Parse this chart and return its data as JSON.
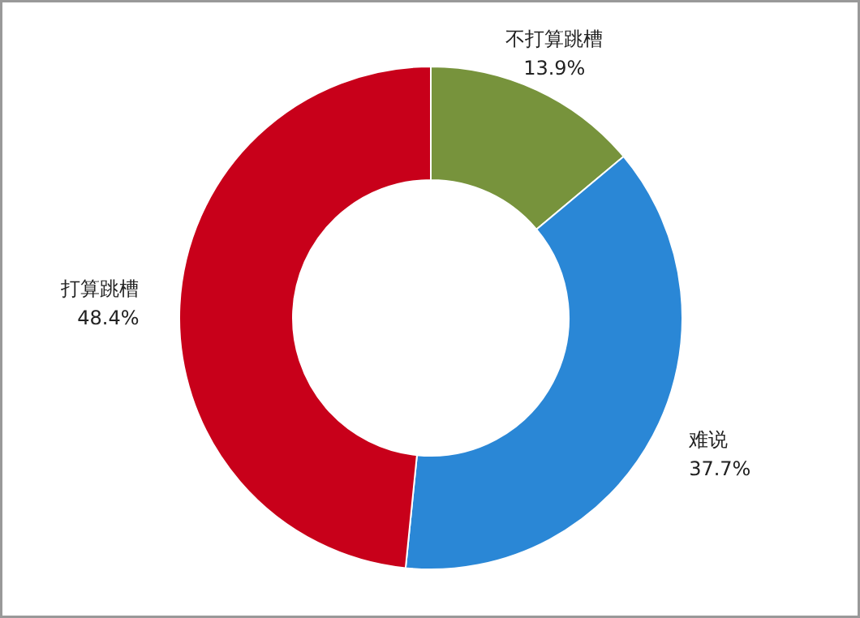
{
  "chart_data": {
    "type": "donut",
    "categories": [
      "不打算跳槽",
      "难说",
      "打算跳槽"
    ],
    "values": [
      13.9,
      37.7,
      48.4
    ],
    "colors": [
      "#77933c",
      "#2a87d6",
      "#c8001a"
    ],
    "value_labels": [
      "13.9%",
      "37.7%",
      "48.4%"
    ]
  }
}
